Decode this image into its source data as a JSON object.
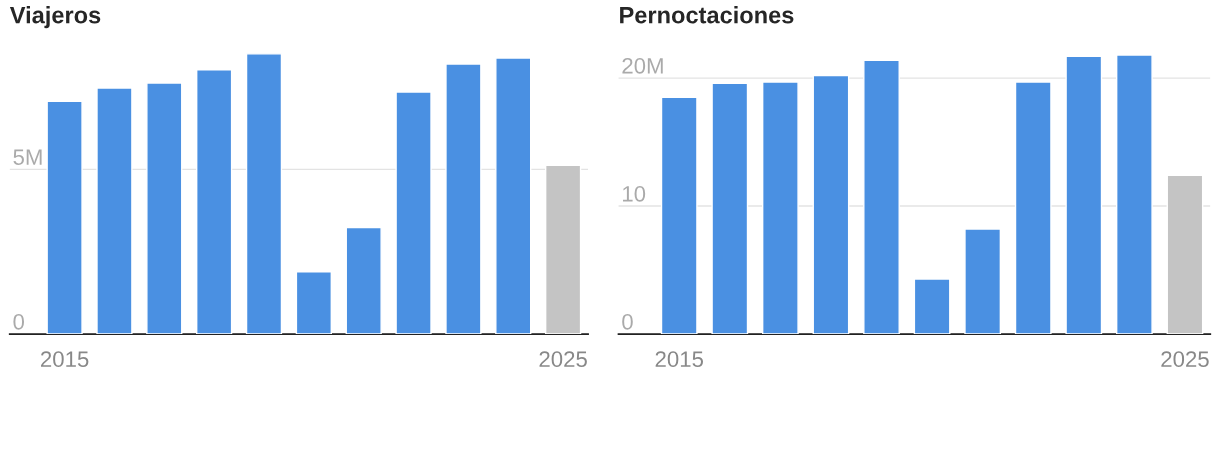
{
  "chart_data": [
    {
      "type": "bar",
      "title": "Viajeros",
      "categories": [
        "2015",
        null,
        null,
        null,
        null,
        null,
        null,
        null,
        null,
        null,
        "2025"
      ],
      "values": [
        7.07,
        7.47,
        7.62,
        8.02,
        8.51,
        1.89,
        3.23,
        7.35,
        8.2,
        8.38,
        5.12
      ],
      "colors": [
        "#4a90e2",
        "#4a90e2",
        "#4a90e2",
        "#4a90e2",
        "#4a90e2",
        "#4a90e2",
        "#4a90e2",
        "#4a90e2",
        "#4a90e2",
        "#4a90e2",
        "#c4c4c4"
      ],
      "ylim": [
        0,
        8.51
      ],
      "yticks": [
        0,
        {
          "value": 5,
          "label": "5M"
        }
      ],
      "grid": "y"
    },
    {
      "type": "bar",
      "title": "Pernoctaciones",
      "categories": [
        "2015",
        null,
        null,
        null,
        null,
        null,
        null,
        null,
        null,
        null,
        "2025"
      ],
      "values": [
        18.5,
        19.6,
        19.7,
        20.2,
        21.4,
        4.3,
        8.2,
        19.7,
        21.7,
        21.8,
        12.4
      ],
      "colors": [
        "#4a90e2",
        "#4a90e2",
        "#4a90e2",
        "#4a90e2",
        "#4a90e2",
        "#4a90e2",
        "#4a90e2",
        "#4a90e2",
        "#4a90e2",
        "#4a90e2",
        "#c4c4c4"
      ],
      "ylim": [
        0,
        21.9
      ],
      "yticks": [
        0,
        10,
        {
          "value": 20,
          "label": "20M"
        }
      ],
      "grid": "y"
    }
  ]
}
